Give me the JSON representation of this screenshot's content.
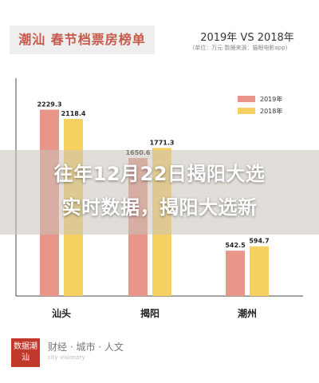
{
  "header": {
    "title": "潮汕 春节档票房榜单",
    "comparison": "2019年 VS 2018年",
    "unit_source": "(单位：万元    数据来源：猫眼电影app)"
  },
  "headline": {
    "line1": "往年12月22日揭阳大选",
    "line2": "实时数据，揭阳大选新"
  },
  "chart_data": {
    "type": "bar",
    "categories": [
      "汕头",
      "揭阳",
      "潮州"
    ],
    "series": [
      {
        "name": "2019年",
        "values": [
          2229.3,
          1650.6,
          542.5
        ],
        "color": "#e8958a"
      },
      {
        "name": "2018年",
        "values": [
          2118.4,
          1771.3,
          594.7
        ],
        "color": "#f5d060"
      }
    ],
    "value_labels": [
      [
        "2229.3",
        "1650.6",
        "542.5"
      ],
      [
        "2118.4",
        "1771.3",
        "594.7"
      ]
    ],
    "ylim": [
      0,
      2300
    ],
    "legend": "top-right",
    "grid": false
  },
  "logo": {
    "mark": "数据潮汕",
    "subtitle": "财经 · 城市 · 人文",
    "english": "city visionary"
  }
}
